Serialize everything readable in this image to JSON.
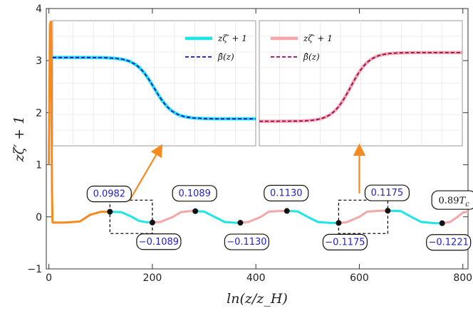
{
  "chart_data": {
    "type": "line",
    "xlabel": "ln(z/z_H)",
    "ylabel": "zζ′ + 1",
    "xlim": [
      -5,
      810
    ],
    "ylim": [
      -1,
      4
    ],
    "xticks": [
      0,
      200,
      400,
      600,
      800
    ],
    "yticks": [
      -1,
      0,
      1,
      2,
      3,
      4
    ],
    "grid": false,
    "colors": {
      "orange": "#f58a1f",
      "cyan": "#1fe6e6",
      "pink": "#f4a7a7",
      "blue_dashed": "#1010cc",
      "purple_dashed": "#8b0a6e",
      "arrow": "#f58a1f"
    },
    "series": [
      {
        "name": "orange initial transient",
        "color": "#f58a1f",
        "x": [
          0,
          2,
          4,
          5,
          6,
          7,
          8,
          10,
          30,
          60,
          80,
          100,
          118
        ],
        "y": [
          1.0,
          3.7,
          3.75,
          2.5,
          0.5,
          -0.1,
          -0.11,
          -0.11,
          -0.11,
          -0.09,
          0.04,
          0.095,
          0.098
        ]
      },
      {
        "name": "cyan plateau segments",
        "color": "#1fe6e6",
        "segments": [
          {
            "x": [
              118,
              140,
              160,
              175,
              190,
              200
            ],
            "y": [
              0.098,
              0.09,
              0.0,
              -0.08,
              -0.105,
              -0.109
            ]
          },
          {
            "x": [
              283,
              300,
              320,
              340,
              360,
              370
            ],
            "y": [
              0.109,
              0.1,
              0.0,
              -0.1,
              -0.113,
              -0.113
            ]
          },
          {
            "x": [
              460,
              480,
              500,
              520,
              545,
              560
            ],
            "y": [
              0.113,
              0.105,
              0.0,
              -0.1,
              -0.117,
              -0.1175
            ]
          },
          {
            "x": [
              655,
              680,
              700,
              720,
              745,
              760
            ],
            "y": [
              0.1175,
              0.11,
              0.0,
              -0.1,
              -0.12,
              -0.1221
            ]
          }
        ]
      },
      {
        "name": "pink transition segments",
        "color": "#f4a7a7",
        "segments": [
          {
            "x": [
              200,
              215,
              240,
              255,
              270,
              283
            ],
            "y": [
              -0.109,
              -0.1,
              0.0,
              0.09,
              0.108,
              0.109
            ]
          },
          {
            "x": [
              370,
              385,
              410,
              425,
              445,
              460
            ],
            "y": [
              -0.113,
              -0.1,
              0.0,
              0.1,
              0.112,
              0.113
            ]
          },
          {
            "x": [
              560,
              575,
              600,
              615,
              640,
              655
            ],
            "y": [
              -0.1175,
              -0.105,
              0.0,
              0.1,
              0.116,
              0.1175
            ]
          },
          {
            "x": [
              760,
              775,
              790,
              800,
              810
            ],
            "y": [
              -0.1221,
              -0.1,
              0.0,
              0.08,
              0.1
            ]
          }
        ]
      }
    ],
    "points": [
      {
        "x": 118,
        "y": 0.0982,
        "label": "0.0982"
      },
      {
        "x": 200,
        "y": -0.1089,
        "label": "−0.1089"
      },
      {
        "x": 283,
        "y": 0.1089,
        "label": "0.1089"
      },
      {
        "x": 370,
        "y": -0.113,
        "label": "−0.1130"
      },
      {
        "x": 460,
        "y": 0.113,
        "label": "0.1130"
      },
      {
        "x": 560,
        "y": -0.1175,
        "label": "−0.1175"
      },
      {
        "x": 655,
        "y": 0.1175,
        "label": "0.1175"
      },
      {
        "x": 760,
        "y": -0.1221,
        "label": "−0.1221"
      }
    ],
    "temperature_label": "0.89",
    "temperature_label_sub": "T",
    "temperature_label_sub2": "c",
    "insets": [
      {
        "name": "inset-left",
        "legend": [
          {
            "label": "zζ′ + 1",
            "color": "#1fe6e6",
            "style": "solid"
          },
          {
            "label": "β̄(z)",
            "color": "#1010cc",
            "style": "dashed"
          }
        ],
        "curve": {
          "from": 3.15,
          "to": 1.9,
          "transition": 0.5
        },
        "y_range": [
          1.35,
          3.9
        ]
      },
      {
        "name": "inset-right",
        "legend": [
          {
            "label": "zζ′ + 1",
            "color": "#f4a7a7",
            "style": "solid"
          },
          {
            "label": "β̄(z)",
            "color": "#8b0a6e",
            "style": "dashed"
          }
        ],
        "curve": {
          "from": 1.85,
          "to": 3.25,
          "transition": 0.45
        },
        "y_range": [
          1.35,
          3.9
        ]
      }
    ]
  }
}
